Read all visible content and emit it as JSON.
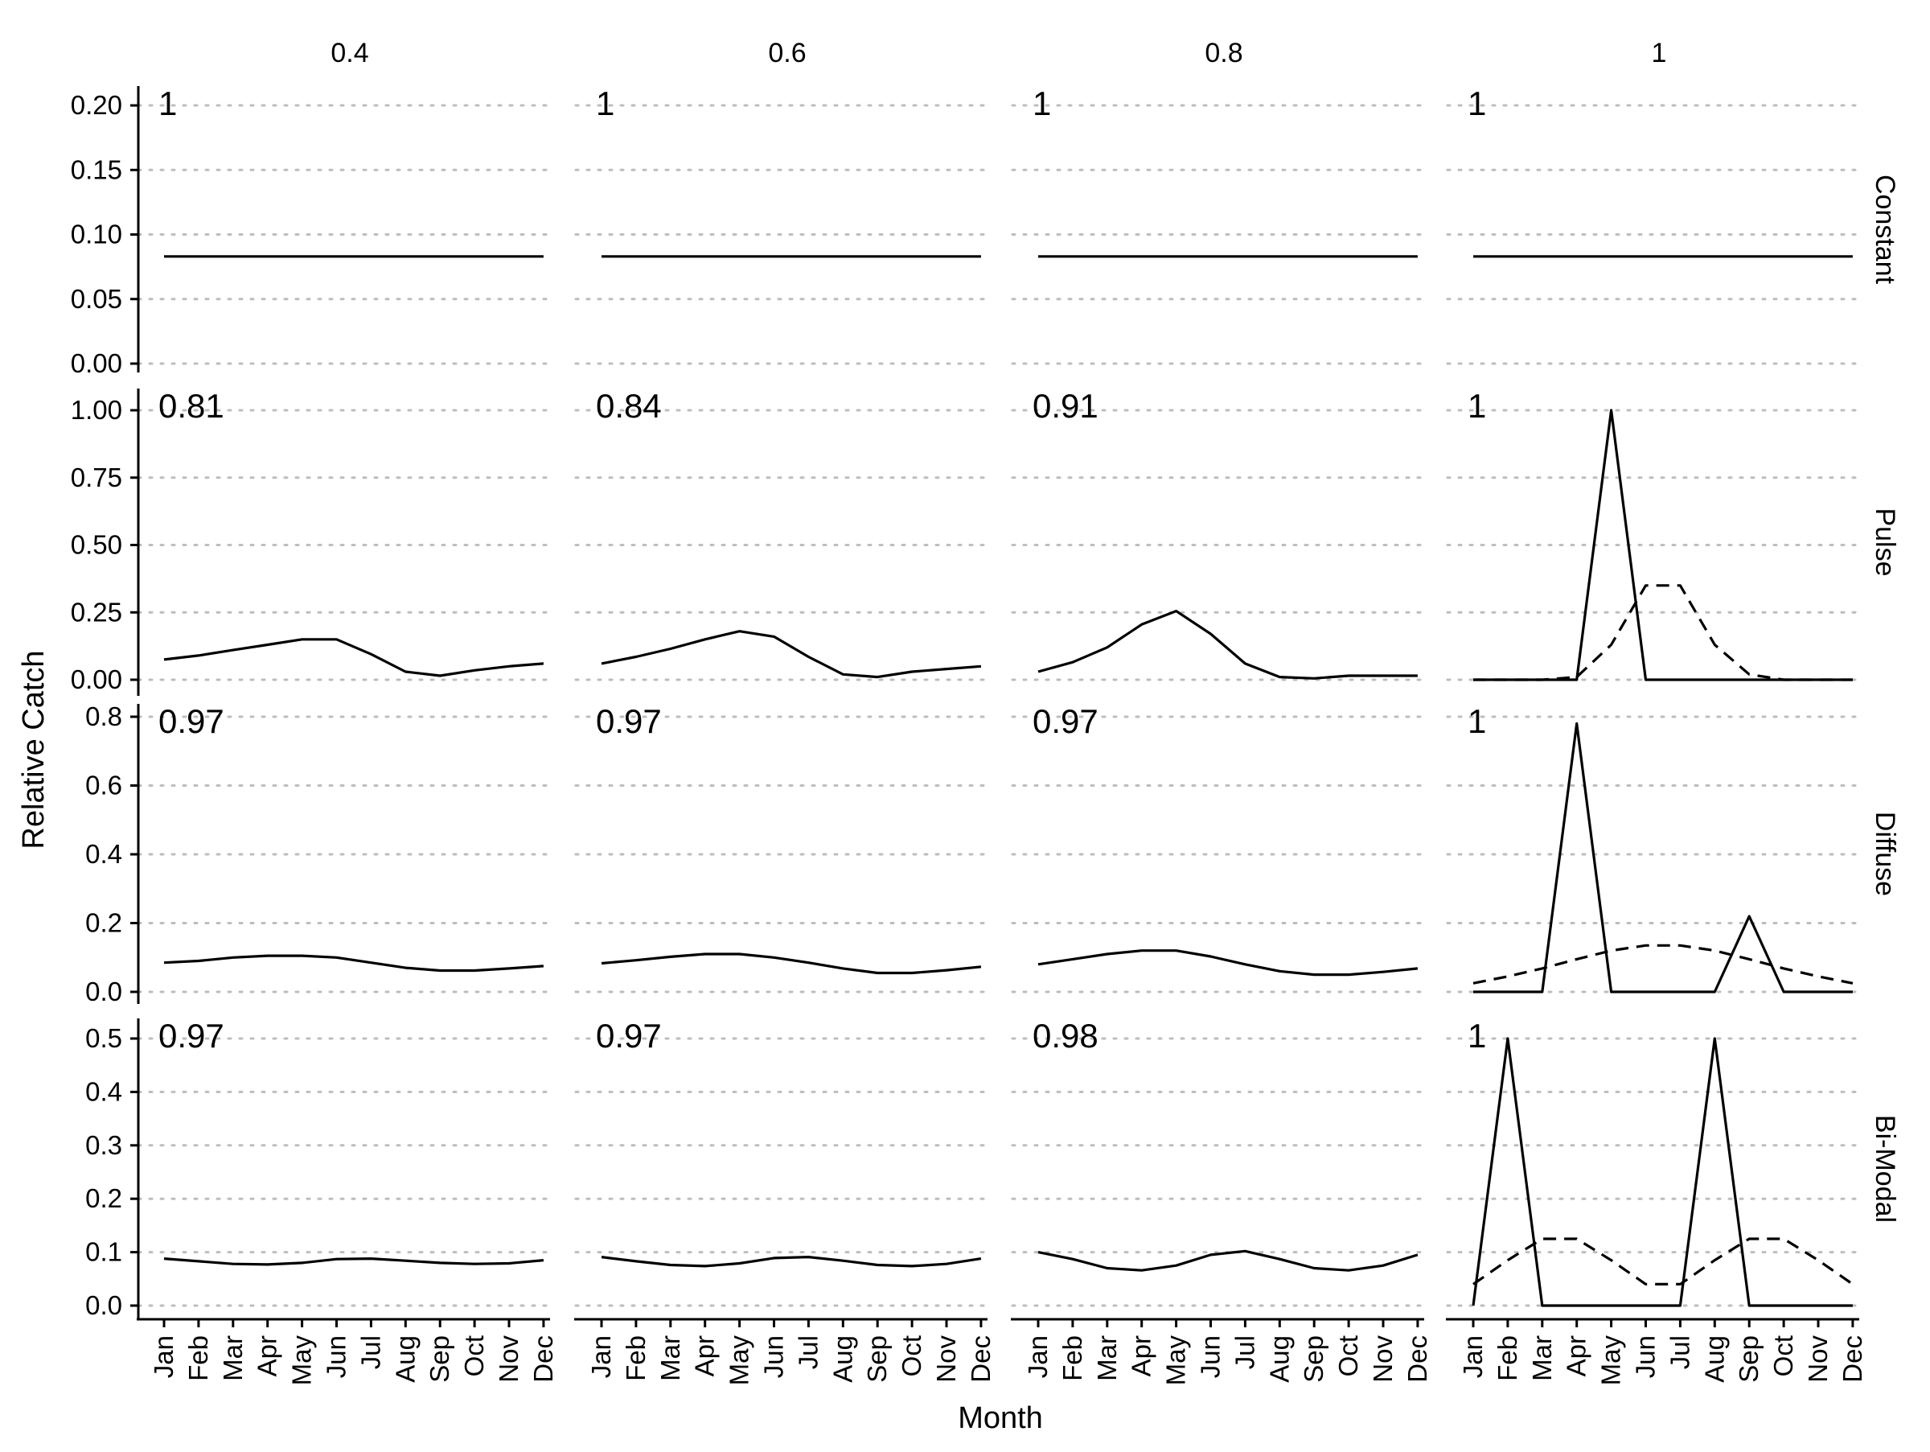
{
  "chart_data": {
    "type": "line",
    "xlabel": "Month",
    "ylabel": "Relative Catch",
    "x_categories": [
      "Jan",
      "Feb",
      "Mar",
      "Apr",
      "May",
      "Jun",
      "Jul",
      "Aug",
      "Sep",
      "Oct",
      "Nov",
      "Dec"
    ],
    "columns": [
      "0.4",
      "0.6",
      "0.8",
      "1"
    ],
    "rows": [
      {
        "label": "Constant",
        "ylim": [
          0,
          0.21
        ],
        "ticks": [
          "0.00",
          "0.05",
          "0.10",
          "0.15",
          "0.20"
        ]
      },
      {
        "label": "Pulse",
        "ylim": [
          0,
          1.0
        ],
        "ticks": [
          "0.00",
          "0.25",
          "0.50",
          "0.75",
          "1.00"
        ]
      },
      {
        "label": "Diffuse",
        "ylim": [
          0,
          0.8
        ],
        "ticks": [
          "0.0",
          "0.2",
          "0.4",
          "0.6",
          "0.8"
        ]
      },
      {
        "label": "Bi-Modal",
        "ylim": [
          0,
          0.5
        ],
        "ticks": [
          "0.0",
          "0.1",
          "0.2",
          "0.3",
          "0.4",
          "0.5"
        ]
      }
    ],
    "grid": "horizontal-dotted",
    "panels": [
      {
        "row": 0,
        "col": 0,
        "annotation": "1",
        "series": [
          {
            "style": "solid",
            "values": [
              0.083,
              0.083,
              0.083,
              0.083,
              0.083,
              0.083,
              0.083,
              0.083,
              0.083,
              0.083,
              0.083,
              0.083
            ]
          }
        ]
      },
      {
        "row": 0,
        "col": 1,
        "annotation": "1",
        "series": [
          {
            "style": "solid",
            "values": [
              0.083,
              0.083,
              0.083,
              0.083,
              0.083,
              0.083,
              0.083,
              0.083,
              0.083,
              0.083,
              0.083,
              0.083
            ]
          }
        ]
      },
      {
        "row": 0,
        "col": 2,
        "annotation": "1",
        "series": [
          {
            "style": "solid",
            "values": [
              0.083,
              0.083,
              0.083,
              0.083,
              0.083,
              0.083,
              0.083,
              0.083,
              0.083,
              0.083,
              0.083,
              0.083
            ]
          }
        ]
      },
      {
        "row": 0,
        "col": 3,
        "annotation": "1",
        "series": [
          {
            "style": "solid",
            "values": [
              0.083,
              0.083,
              0.083,
              0.083,
              0.083,
              0.083,
              0.083,
              0.083,
              0.083,
              0.083,
              0.083,
              0.083
            ]
          }
        ]
      },
      {
        "row": 1,
        "col": 0,
        "annotation": "0.81",
        "series": [
          {
            "style": "solid",
            "values": [
              0.075,
              0.09,
              0.11,
              0.13,
              0.15,
              0.15,
              0.095,
              0.03,
              0.015,
              0.035,
              0.05,
              0.06
            ]
          }
        ]
      },
      {
        "row": 1,
        "col": 1,
        "annotation": "0.84",
        "series": [
          {
            "style": "solid",
            "values": [
              0.06,
              0.085,
              0.115,
              0.15,
              0.18,
              0.16,
              0.085,
              0.02,
              0.01,
              0.03,
              0.04,
              0.05
            ]
          }
        ]
      },
      {
        "row": 1,
        "col": 2,
        "annotation": "0.91",
        "series": [
          {
            "style": "solid",
            "values": [
              0.03,
              0.065,
              0.12,
              0.205,
              0.255,
              0.17,
              0.06,
              0.01,
              0.005,
              0.015,
              0.015,
              0.015
            ]
          }
        ]
      },
      {
        "row": 1,
        "col": 3,
        "annotation": "1",
        "series": [
          {
            "style": "solid",
            "values": [
              0,
              0,
              0,
              0,
              1.0,
              0,
              0,
              0,
              0,
              0,
              0,
              0
            ]
          },
          {
            "style": "dashed",
            "values": [
              0,
              0,
              0,
              0.01,
              0.13,
              0.35,
              0.35,
              0.13,
              0.02,
              0,
              0,
              0
            ]
          }
        ]
      },
      {
        "row": 2,
        "col": 0,
        "annotation": "0.97",
        "series": [
          {
            "style": "solid",
            "values": [
              0.085,
              0.09,
              0.1,
              0.105,
              0.105,
              0.1,
              0.085,
              0.07,
              0.062,
              0.062,
              0.068,
              0.075
            ]
          }
        ]
      },
      {
        "row": 2,
        "col": 1,
        "annotation": "0.97",
        "series": [
          {
            "style": "solid",
            "values": [
              0.083,
              0.092,
              0.102,
              0.11,
              0.11,
              0.1,
              0.085,
              0.068,
              0.055,
              0.055,
              0.063,
              0.073
            ]
          }
        ]
      },
      {
        "row": 2,
        "col": 2,
        "annotation": "0.97",
        "series": [
          {
            "style": "solid",
            "values": [
              0.08,
              0.095,
              0.11,
              0.12,
              0.12,
              0.103,
              0.08,
              0.06,
              0.05,
              0.05,
              0.058,
              0.068
            ]
          }
        ]
      },
      {
        "row": 2,
        "col": 3,
        "annotation": "1",
        "series": [
          {
            "style": "solid",
            "values": [
              0,
              0,
              0,
              0.78,
              0,
              0,
              0,
              0,
              0.22,
              0,
              0,
              0
            ]
          },
          {
            "style": "dashed",
            "values": [
              0.025,
              0.045,
              0.068,
              0.095,
              0.12,
              0.135,
              0.135,
              0.12,
              0.095,
              0.068,
              0.045,
              0.025
            ]
          }
        ]
      },
      {
        "row": 3,
        "col": 0,
        "annotation": "0.97",
        "series": [
          {
            "style": "solid",
            "values": [
              0.088,
              0.083,
              0.078,
              0.077,
              0.08,
              0.087,
              0.088,
              0.084,
              0.08,
              0.078,
              0.079,
              0.085
            ]
          }
        ]
      },
      {
        "row": 3,
        "col": 1,
        "annotation": "0.97",
        "series": [
          {
            "style": "solid",
            "values": [
              0.091,
              0.083,
              0.076,
              0.074,
              0.079,
              0.089,
              0.091,
              0.084,
              0.076,
              0.074,
              0.078,
              0.088
            ]
          }
        ]
      },
      {
        "row": 3,
        "col": 2,
        "annotation": "0.98",
        "series": [
          {
            "style": "solid",
            "values": [
              0.1,
              0.087,
              0.07,
              0.066,
              0.075,
              0.095,
              0.102,
              0.087,
              0.07,
              0.066,
              0.075,
              0.095
            ]
          }
        ]
      },
      {
        "row": 3,
        "col": 3,
        "annotation": "1",
        "series": [
          {
            "style": "solid",
            "values": [
              0,
              0.5,
              0,
              0,
              0,
              0,
              0,
              0.5,
              0,
              0,
              0,
              0
            ]
          },
          {
            "style": "dashed",
            "values": [
              0.04,
              0.085,
              0.125,
              0.125,
              0.085,
              0.04,
              0.04,
              0.085,
              0.125,
              0.125,
              0.085,
              0.04
            ]
          }
        ]
      }
    ]
  }
}
